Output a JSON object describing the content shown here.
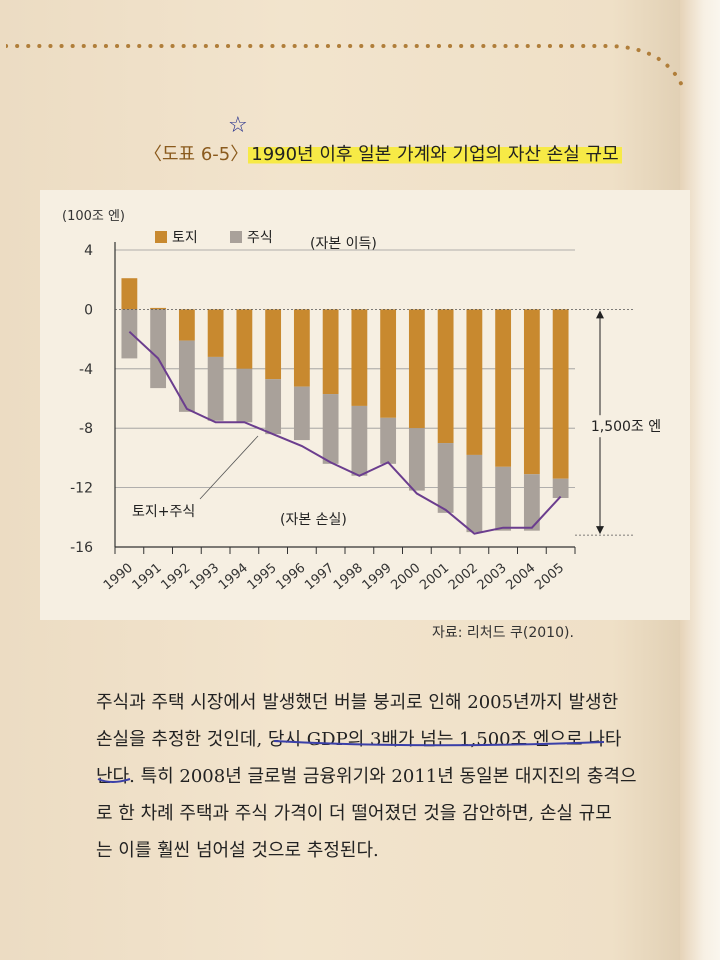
{
  "caption": {
    "label": "〈도표 6-5〉",
    "title": "1990년 이후 일본 가계와 기업의 자산 손실 규모",
    "mark": "☆"
  },
  "chart_data": {
    "type": "bar",
    "ylabel": "(100조 엔)",
    "ylim": [
      -16,
      4
    ],
    "yticks": [
      4,
      0,
      -4,
      -8,
      -12,
      -16
    ],
    "categories": [
      "1990",
      "1991",
      "1992",
      "1993",
      "1994",
      "1995",
      "1996",
      "1997",
      "1998",
      "1999",
      "2000",
      "2001",
      "2002",
      "2003",
      "2004",
      "2005"
    ],
    "series": [
      {
        "name": "토지",
        "color": "#c8892f",
        "values": [
          2.1,
          0.1,
          -2.1,
          -3.2,
          -4.0,
          -4.7,
          -5.2,
          -5.7,
          -6.5,
          -7.3,
          -8.0,
          -9.0,
          -9.8,
          -10.6,
          -11.1,
          -11.4
        ]
      },
      {
        "name": "주식",
        "color": "#a9a19a",
        "values": [
          -3.3,
          -5.3,
          -4.8,
          -4.3,
          -3.6,
          -3.7,
          -3.6,
          -4.7,
          -4.7,
          -3.1,
          -4.2,
          -4.7,
          -5.2,
          -4.3,
          -3.8,
          -1.3
        ]
      }
    ],
    "line": {
      "name": "토지+주식",
      "color": "#6b3d8e",
      "values": [
        -1.5,
        -3.3,
        -6.7,
        -7.6,
        -7.6,
        -8.4,
        -9.2,
        -10.3,
        -11.2,
        -10.3,
        -12.4,
        -13.5,
        -15.1,
        -14.7,
        -14.7,
        -12.6
      ]
    },
    "annotations": {
      "gain": "(자본 이득)",
      "loss": "(자본 손실)",
      "line_label": "토지+주식",
      "bracket": "1,500조 엔"
    },
    "grid": true,
    "legend": "top-left"
  },
  "source": "자료: 리처드 쿠(2010).",
  "paragraph": [
    "주식과 주택 시장에서 발생했던 버블 붕괴로 인해 2005년까지 발생한",
    "손실을 추정한 것인데, 당시 GDP의 3배가 넘는 1,500조 엔으로 나타",
    "난다. 특히 2008년 글로벌 금융위기와 2011년 동일본 대지진의 충격으",
    "로 한 차례 주택과 주식 가격이 더 떨어졌던 것을 감안하면, 손실 규모",
    "는 이를 훨씬 넘어설 것으로 추정된다."
  ]
}
